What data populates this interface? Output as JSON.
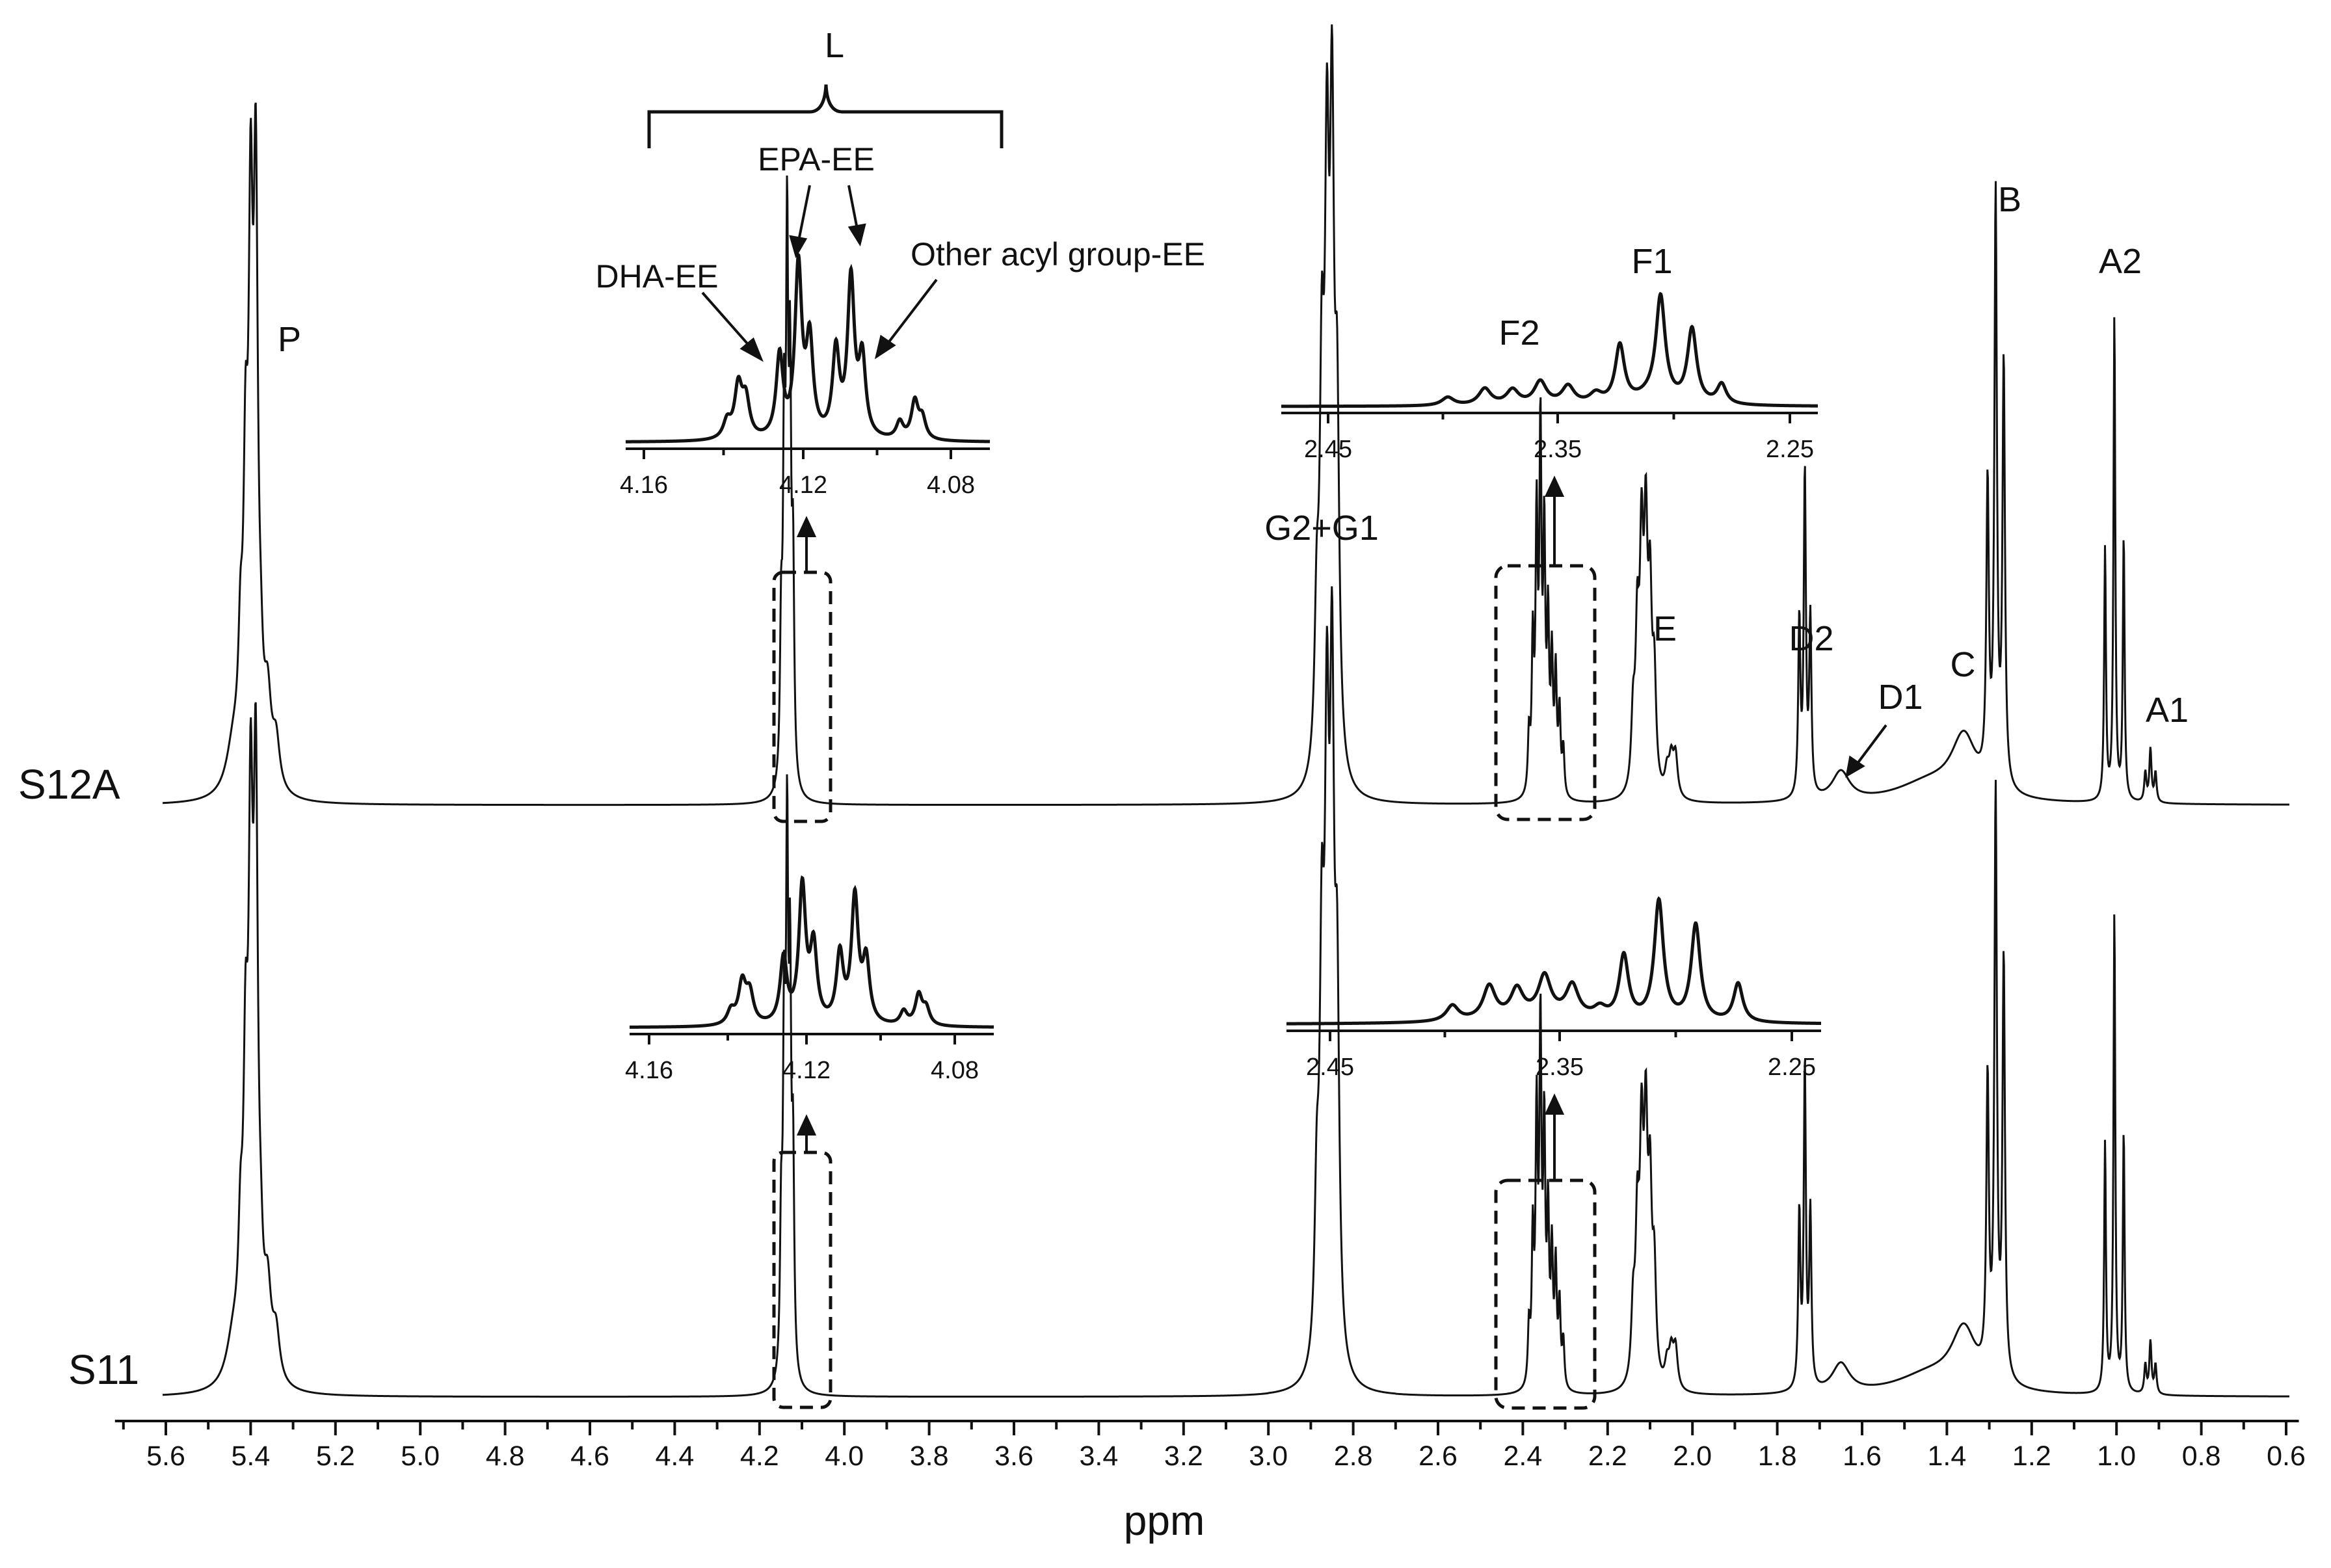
{
  "chart_data": {
    "type": "line",
    "xlabel": "ppm",
    "x_axis": {
      "reversed": true,
      "range": [
        5.72,
        0.57
      ],
      "ticks": [
        "5.6",
        "5.4",
        "5.2",
        "5.0",
        "4.8",
        "4.6",
        "4.4",
        "4.2",
        "4.0",
        "3.8",
        "3.6",
        "3.4",
        "3.2",
        "3.0",
        "2.8",
        "2.6",
        "2.4",
        "2.2",
        "2.0",
        "1.8",
        "1.6",
        "1.4",
        "1.2",
        "1.0",
        "0.8",
        "0.6"
      ]
    },
    "series": [
      {
        "name": "S12A",
        "role": "top-spectrum"
      },
      {
        "name": "S11",
        "role": "bottom-spectrum"
      }
    ],
    "peaks": [
      {
        "label": "P",
        "ppm": 5.41,
        "rel_height": 0.5
      },
      {
        "label": "G2+G1",
        "ppm": 2.87,
        "rel_height": 0.32
      },
      {
        "label": "E",
        "ppm": 2.12,
        "rel_height": 0.2
      },
      {
        "label": "D2",
        "ppm": 1.74,
        "rel_height": 0.17
      },
      {
        "label": "D1",
        "ppm": 1.65,
        "rel_height": 0.04
      },
      {
        "label": "C",
        "ppm": 1.36,
        "rel_height": 0.1
      },
      {
        "label": "B",
        "ppm": 1.29,
        "rel_height": 0.95
      },
      {
        "label": "A2",
        "ppm": 1.01,
        "rel_height": 0.85
      },
      {
        "label": "A1",
        "ppm": 0.92,
        "rel_height": 0.09
      }
    ],
    "insets": [
      {
        "region": "L",
        "ticks": [
          "4.16",
          "4.12",
          "4.08"
        ]
      },
      {
        "region": "F",
        "ticks": [
          "2.45",
          "2.35",
          "2.25"
        ]
      }
    ],
    "annotations": {
      "bracket": "L",
      "epa": "EPA-EE",
      "dha": "DHA-EE",
      "other": "Other acyl group-EE",
      "f1": "F1",
      "f2": "F2"
    }
  }
}
